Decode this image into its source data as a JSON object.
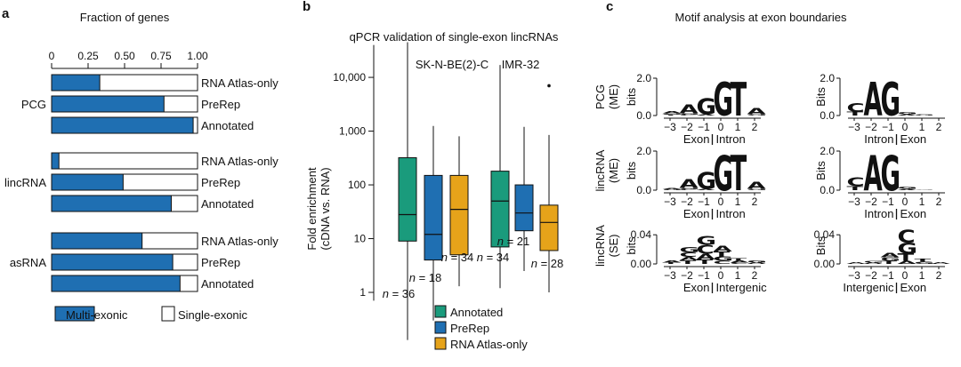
{
  "panel_labels": {
    "a": "a",
    "b": "b",
    "c": "c"
  },
  "colors": {
    "multi": "#1f6fb2",
    "annotated": "#1a9b7c",
    "prerep": "#1f6fb2",
    "atlas": "#e6a31a",
    "A": "#1a9b7c",
    "C": "#1f6fb2",
    "G": "#e6a31a",
    "T": "#d45f1d"
  },
  "chart_data": [
    {
      "type": "bar",
      "title": "Fraction of genes",
      "xlim": [
        0,
        1
      ],
      "ticks": [
        "0",
        "0.25",
        "0.50",
        "0.75",
        "1.00"
      ],
      "tick_values": [
        0,
        0.25,
        0.5,
        0.75,
        1.0
      ],
      "groups": [
        {
          "name": "PCG",
          "bars": [
            {
              "label": "RNA Atlas-only",
              "value": 0.33
            },
            {
              "label": "PreRep",
              "value": 0.77
            },
            {
              "label": "Annotated",
              "value": 0.97
            }
          ]
        },
        {
          "name": "lincRNA",
          "bars": [
            {
              "label": "RNA Atlas-only",
              "value": 0.05
            },
            {
              "label": "PreRep",
              "value": 0.49
            },
            {
              "label": "Annotated",
              "value": 0.82
            }
          ]
        },
        {
          "name": "asRNA",
          "bars": [
            {
              "label": "RNA Atlas-only",
              "value": 0.62
            },
            {
              "label": "PreRep",
              "value": 0.83
            },
            {
              "label": "Annotated",
              "value": 0.88
            }
          ]
        }
      ],
      "legend": [
        {
          "label": "Multi-exonic",
          "key": "multi"
        },
        {
          "label": "Single-exonic",
          "key": "single"
        }
      ]
    },
    {
      "type": "box",
      "title": "qPCR validation of single-exon lincRNAs",
      "ylabel": "Fold enrichment\n(cDNA vs. RNA)",
      "yscale": "log",
      "ylim": [
        0.45,
        60000
      ],
      "yticks": [
        {
          "value": 1,
          "label": "1"
        },
        {
          "value": 10,
          "label": "10"
        },
        {
          "value": 100,
          "label": "100"
        },
        {
          "value": 1000,
          "label": "1,000"
        },
        {
          "value": 10000,
          "label": "10,000"
        }
      ],
      "cell_lines": [
        "SK-N-BE(2)-C",
        "IMR-32"
      ],
      "boxes": [
        {
          "cell": "SK-N-BE(2)-C",
          "series": "annotated",
          "whislo": 0.13,
          "q1": 9,
          "med": 28,
          "q3": 320,
          "whishi": 45000,
          "n": "36",
          "outliers": []
        },
        {
          "cell": "SK-N-BE(2)-C",
          "series": "prerep",
          "whislo": 0.3,
          "q1": 4,
          "med": 12,
          "q3": 150,
          "whishi": 1250,
          "n": "18",
          "outliers": []
        },
        {
          "cell": "SK-N-BE(2)-C",
          "series": "atlas",
          "whislo": 1.3,
          "q1": 5,
          "med": 35,
          "q3": 150,
          "whishi": 800,
          "n": "34",
          "outliers": []
        },
        {
          "cell": "IMR-32",
          "series": "annotated",
          "whislo": 1.2,
          "q1": 7,
          "med": 50,
          "q3": 180,
          "whishi": 17000,
          "n": "34",
          "outliers": []
        },
        {
          "cell": "IMR-32",
          "series": "prerep",
          "whislo": 2.5,
          "q1": 14,
          "med": 30,
          "q3": 100,
          "whishi": 1200,
          "n": "21",
          "outliers": []
        },
        {
          "cell": "IMR-32",
          "series": "atlas",
          "whislo": 1,
          "q1": 6,
          "med": 20,
          "q3": 42,
          "whishi": 850,
          "n": "28",
          "outliers": [
            7000
          ]
        }
      ],
      "n_prefix": "n",
      "legend": [
        {
          "label": "Annotated",
          "key": "annotated"
        },
        {
          "label": "PreRep",
          "key": "prerep"
        },
        {
          "label": "RNA Atlas-only",
          "key": "atlas"
        }
      ]
    },
    {
      "type": "sequence-logo",
      "title": "Motif analysis at exon boundaries",
      "positions": [
        "−3",
        "−2",
        "−1",
        "0",
        "1",
        "2"
      ],
      "rows": [
        {
          "label": "PCG\n(ME)",
          "ylabel_left": "bits",
          "ylabel_right": "Bits",
          "ymax": 2.0,
          "yticks": [
            "0.0",
            "2.0"
          ],
          "tick_values": [
            0,
            2.0
          ],
          "left": {
            "xlabel_a": "Exon",
            "xlabel_b": "Intron",
            "stacks": [
              {
                "pos": "−3",
                "letters": [
                  {
                    "l": "T",
                    "h": 0.05
                  },
                  {
                    "l": "G",
                    "h": 0.07
                  },
                  {
                    "l": "A",
                    "h": 0.12
                  }
                ]
              },
              {
                "pos": "−2",
                "letters": [
                  {
                    "l": "C",
                    "h": 0.05
                  },
                  {
                    "l": "G",
                    "h": 0.07
                  },
                  {
                    "l": "A",
                    "h": 0.45
                  }
                ]
              },
              {
                "pos": "−1",
                "letters": [
                  {
                    "l": "A",
                    "h": 0.07
                  },
                  {
                    "l": "G",
                    "h": 0.85
                  }
                ]
              },
              {
                "pos": "0",
                "letters": [
                  {
                    "l": "G",
                    "h": 1.8
                  }
                ]
              },
              {
                "pos": "1",
                "letters": [
                  {
                    "l": "T",
                    "h": 1.8
                  }
                ]
              },
              {
                "pos": "2",
                "letters": [
                  {
                    "l": "G",
                    "h": 0.06
                  },
                  {
                    "l": "A",
                    "h": 0.35
                  }
                ]
              }
            ]
          },
          "right": {
            "xlabel_a": "Intron",
            "xlabel_b": "Exon",
            "stacks": [
              {
                "pos": "−3",
                "letters": [
                  {
                    "l": "T",
                    "h": 0.2
                  },
                  {
                    "l": "C",
                    "h": 0.45
                  }
                ]
              },
              {
                "pos": "−2",
                "letters": [
                  {
                    "l": "A",
                    "h": 1.8
                  }
                ]
              },
              {
                "pos": "−1",
                "letters": [
                  {
                    "l": "G",
                    "h": 1.8
                  }
                ]
              },
              {
                "pos": "0",
                "letters": [
                  {
                    "l": "A",
                    "h": 0.06
                  },
                  {
                    "l": "G",
                    "h": 0.12
                  }
                ]
              },
              {
                "pos": "1",
                "letters": [
                  {
                    "l": "G",
                    "h": 0.05
                  }
                ]
              },
              {
                "pos": "2",
                "letters": []
              }
            ]
          }
        },
        {
          "label": "lincRNA\n(ME)",
          "ylabel_left": "bits",
          "ylabel_right": "Bits",
          "ymax": 2.0,
          "yticks": [
            "0.0",
            "2.0"
          ],
          "tick_values": [
            0,
            2.0
          ],
          "left": {
            "xlabel_a": "Exon",
            "xlabel_b": "Intron",
            "stacks": [
              {
                "pos": "−3",
                "letters": [
                  {
                    "l": "G",
                    "h": 0.05
                  },
                  {
                    "l": "A",
                    "h": 0.06
                  }
                ]
              },
              {
                "pos": "−2",
                "letters": [
                  {
                    "l": "C",
                    "h": 0.05
                  },
                  {
                    "l": "G",
                    "h": 0.06
                  },
                  {
                    "l": "A",
                    "h": 0.45
                  }
                ]
              },
              {
                "pos": "−1",
                "letters": [
                  {
                    "l": "A",
                    "h": 0.07
                  },
                  {
                    "l": "G",
                    "h": 0.85
                  }
                ]
              },
              {
                "pos": "0",
                "letters": [
                  {
                    "l": "G",
                    "h": 1.8
                  }
                ]
              },
              {
                "pos": "1",
                "letters": [
                  {
                    "l": "T",
                    "h": 1.8
                  }
                ]
              },
              {
                "pos": "2",
                "letters": [
                  {
                    "l": "G",
                    "h": 0.06
                  },
                  {
                    "l": "A",
                    "h": 0.35
                  }
                ]
              }
            ]
          },
          "right": {
            "xlabel_a": "Intron",
            "xlabel_b": "Exon",
            "stacks": [
              {
                "pos": "−3",
                "letters": [
                  {
                    "l": "T",
                    "h": 0.2
                  },
                  {
                    "l": "C",
                    "h": 0.45
                  }
                ]
              },
              {
                "pos": "−2",
                "letters": [
                  {
                    "l": "A",
                    "h": 1.8
                  }
                ]
              },
              {
                "pos": "−1",
                "letters": [
                  {
                    "l": "G",
                    "h": 1.8
                  }
                ]
              },
              {
                "pos": "0",
                "letters": [
                  {
                    "l": "A",
                    "h": 0.06
                  },
                  {
                    "l": "G",
                    "h": 0.1
                  }
                ]
              },
              {
                "pos": "1",
                "letters": [
                  {
                    "l": "G",
                    "h": 0.04
                  }
                ]
              },
              {
                "pos": "2",
                "letters": []
              }
            ]
          }
        },
        {
          "label": "lincRNA\n(SE)",
          "ylabel_left": "bits",
          "ylabel_right": "Bits",
          "ymax": 0.05,
          "yticks": [
            "0.00",
            "0.04"
          ],
          "tick_values": [
            0,
            0.04
          ],
          "left": {
            "xlabel_a": "Exon",
            "xlabel_b": "Intergenic",
            "stacks": [
              {
                "pos": "−3",
                "letters": [
                  {
                    "l": "T",
                    "h": 0.002
                  },
                  {
                    "l": "A",
                    "h": 0.003
                  }
                ]
              },
              {
                "pos": "−2",
                "letters": [
                  {
                    "l": "T",
                    "h": 0.005
                  },
                  {
                    "l": "A",
                    "h": 0.005
                  },
                  {
                    "l": "C",
                    "h": 0.006
                  },
                  {
                    "l": "G",
                    "h": 0.007
                  }
                ]
              },
              {
                "pos": "−1",
                "letters": [
                  {
                    "l": "T",
                    "h": 0.006
                  },
                  {
                    "l": "A",
                    "h": 0.008
                  },
                  {
                    "l": "C",
                    "h": 0.012
                  },
                  {
                    "l": "G",
                    "h": 0.012
                  }
                ]
              },
              {
                "pos": "0",
                "letters": [
                  {
                    "l": "C",
                    "h": 0.004
                  },
                  {
                    "l": "G",
                    "h": 0.006
                  },
                  {
                    "l": "T",
                    "h": 0.007
                  },
                  {
                    "l": "A",
                    "h": 0.008
                  }
                ]
              },
              {
                "pos": "1",
                "letters": [
                  {
                    "l": "C",
                    "h": 0.002
                  },
                  {
                    "l": "A",
                    "h": 0.003
                  },
                  {
                    "l": "T",
                    "h": 0.003
                  }
                ]
              },
              {
                "pos": "2",
                "letters": [
                  {
                    "l": "A",
                    "h": 0.002
                  },
                  {
                    "l": "G",
                    "h": 0.003
                  }
                ]
              }
            ]
          },
          "right": {
            "xlabel_a": "Intergenic",
            "xlabel_b": "Exon",
            "stacks": [
              {
                "pos": "−3",
                "letters": [
                  {
                    "l": "A",
                    "h": 0.002
                  }
                ]
              },
              {
                "pos": "−2",
                "letters": [
                  {
                    "l": "A",
                    "h": 0.002
                  },
                  {
                    "l": "G",
                    "h": 0.002
                  }
                ]
              },
              {
                "pos": "−1",
                "letters": [
                  {
                    "l": "T",
                    "h": 0.004
                  },
                  {
                    "l": "G",
                    "h": 0.005
                  },
                  {
                    "l": "A",
                    "h": 0.006
                  }
                ]
              },
              {
                "pos": "0",
                "letters": [
                  {
                    "l": "A",
                    "h": 0.004
                  },
                  {
                    "l": "T",
                    "h": 0.01
                  },
                  {
                    "l": "G",
                    "h": 0.015
                  },
                  {
                    "l": "C",
                    "h": 0.017
                  }
                ]
              },
              {
                "pos": "1",
                "letters": [
                  {
                    "l": "G",
                    "h": 0.003
                  },
                  {
                    "l": "T",
                    "h": 0.004
                  }
                ]
              },
              {
                "pos": "2",
                "letters": [
                  {
                    "l": "A",
                    "h": 0.002
                  }
                ]
              }
            ]
          }
        }
      ]
    }
  ]
}
